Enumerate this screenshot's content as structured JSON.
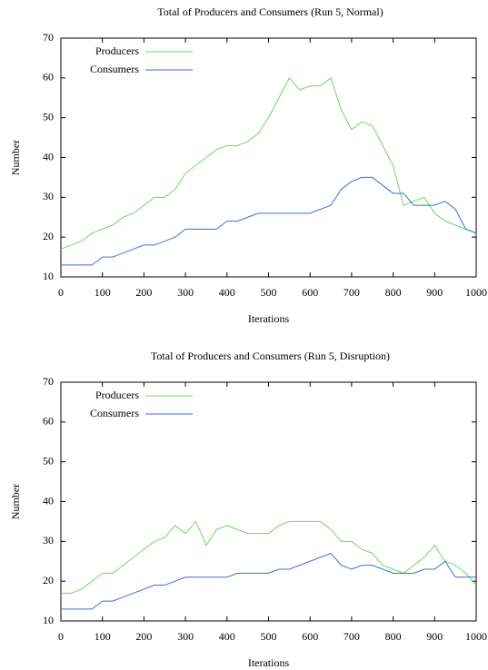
{
  "chart_data": [
    {
      "type": "line",
      "title": "Total of Producers and Consumers (Run 5, Normal)",
      "x_label": "Iterations",
      "y_label": "Number",
      "x": [
        0,
        25,
        50,
        75,
        100,
        125,
        150,
        175,
        200,
        225,
        250,
        275,
        300,
        325,
        350,
        375,
        400,
        425,
        450,
        475,
        500,
        525,
        550,
        575,
        600,
        625,
        650,
        675,
        700,
        725,
        750,
        775,
        800,
        825,
        850,
        875,
        900,
        925,
        950,
        975,
        1000
      ],
      "series": [
        {
          "name": "Producers",
          "color": "#66dd55",
          "values": [
            17,
            18,
            19,
            21,
            22,
            23,
            25,
            26,
            28,
            30,
            30,
            32,
            36,
            38,
            40,
            42,
            43,
            43,
            44,
            46,
            50,
            55,
            60,
            57,
            58,
            58,
            60,
            52,
            47,
            49,
            48,
            43,
            38,
            28,
            29,
            30,
            26,
            24,
            23,
            22,
            21
          ]
        },
        {
          "name": "Consumers",
          "color": "#3a6fd8",
          "values": [
            13,
            13,
            13,
            13,
            15,
            15,
            16,
            17,
            18,
            18,
            19,
            20,
            22,
            22,
            22,
            22,
            24,
            24,
            25,
            26,
            26,
            26,
            26,
            26,
            26,
            27,
            28,
            32,
            34,
            35,
            35,
            33,
            31,
            31,
            28,
            28,
            28,
            29,
            27,
            22,
            21
          ]
        }
      ],
      "xlim": [
        0,
        1000
      ],
      "xticks": [
        0,
        100,
        200,
        300,
        400,
        500,
        600,
        700,
        800,
        900,
        1000
      ],
      "ylim": [
        10,
        70
      ],
      "yticks": [
        10,
        20,
        30,
        40,
        50,
        60,
        70
      ],
      "legend": "upper left"
    },
    {
      "type": "line",
      "title": "Total of Producers and Consumers (Run 5, Disruption)",
      "x_label": "Iterations",
      "y_label": "Number",
      "x": [
        0,
        25,
        50,
        75,
        100,
        125,
        150,
        175,
        200,
        225,
        250,
        275,
        300,
        325,
        350,
        375,
        400,
        425,
        450,
        475,
        500,
        525,
        550,
        575,
        600,
        625,
        650,
        675,
        700,
        725,
        750,
        775,
        800,
        825,
        850,
        875,
        900,
        925,
        950,
        975,
        1000
      ],
      "series": [
        {
          "name": "Producers",
          "color": "#66dd55",
          "values": [
            17,
            17,
            18,
            20,
            22,
            22,
            24,
            26,
            28,
            30,
            31,
            34,
            32,
            35,
            29,
            33,
            34,
            33,
            32,
            32,
            32,
            34,
            35,
            35,
            35,
            35,
            33,
            30,
            30,
            28,
            27,
            24,
            23,
            22,
            24,
            26,
            29,
            25,
            24,
            22,
            19
          ]
        },
        {
          "name": "Consumers",
          "color": "#3a6fd8",
          "values": [
            13,
            13,
            13,
            13,
            15,
            15,
            16,
            17,
            18,
            19,
            19,
            20,
            21,
            21,
            21,
            21,
            21,
            22,
            22,
            22,
            22,
            23,
            23,
            24,
            25,
            26,
            27,
            24,
            23,
            24,
            24,
            23,
            22,
            22,
            22,
            23,
            23,
            25,
            21,
            21,
            21
          ]
        }
      ],
      "xlim": [
        0,
        1000
      ],
      "xticks": [
        0,
        100,
        200,
        300,
        400,
        500,
        600,
        700,
        800,
        900,
        1000
      ],
      "ylim": [
        10,
        70
      ],
      "yticks": [
        10,
        20,
        30,
        40,
        50,
        60,
        70
      ],
      "legend": "upper left"
    }
  ]
}
